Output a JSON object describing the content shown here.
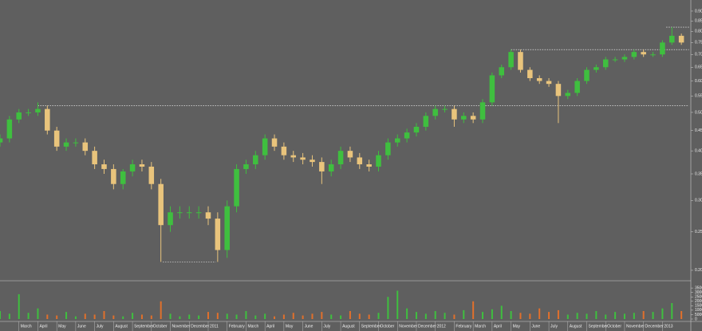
{
  "chart_data": {
    "type": "candlestick",
    "log": true,
    "up_color": "#3fbf3f",
    "down_color": "#e9c47c",
    "volume_up_color": "#3fbf3f",
    "volume_down_color": "#e0702c",
    "level_color": "#ffffff",
    "xlim": [
      0,
      36.5
    ],
    "xticks": [
      {
        "value": 1,
        "label": "March"
      },
      {
        "value": 2,
        "label": "April"
      },
      {
        "value": 3,
        "label": "May"
      },
      {
        "value": 4,
        "label": "June"
      },
      {
        "value": 5,
        "label": "July"
      },
      {
        "value": 6,
        "label": "August"
      },
      {
        "value": 7,
        "label": "September"
      },
      {
        "value": 8,
        "label": "October"
      },
      {
        "value": 9,
        "label": "November"
      },
      {
        "value": 10,
        "label": "December"
      },
      {
        "value": 11,
        "label": "2011"
      },
      {
        "value": 12,
        "label": "February"
      },
      {
        "value": 13,
        "label": "March"
      },
      {
        "value": 14,
        "label": "April"
      },
      {
        "value": 15,
        "label": "May"
      },
      {
        "value": 16,
        "label": "June"
      },
      {
        "value": 17,
        "label": "July"
      },
      {
        "value": 18,
        "label": "August"
      },
      {
        "value": 19,
        "label": "September"
      },
      {
        "value": 20,
        "label": "October"
      },
      {
        "value": 21,
        "label": "November"
      },
      {
        "value": 22,
        "label": "December"
      },
      {
        "value": 23,
        "label": "2012"
      },
      {
        "value": 24,
        "label": "February"
      },
      {
        "value": 25,
        "label": "March"
      },
      {
        "value": 26,
        "label": "April"
      },
      {
        "value": 27,
        "label": "May"
      },
      {
        "value": 28,
        "label": "June"
      },
      {
        "value": 29,
        "label": "July"
      },
      {
        "value": 30,
        "label": "August"
      },
      {
        "value": 31,
        "label": "September"
      },
      {
        "value": 32,
        "label": "October"
      },
      {
        "value": 33,
        "label": "November"
      },
      {
        "value": 34,
        "label": "December"
      },
      {
        "value": 35,
        "label": "2013"
      }
    ],
    "ylim": [
      0.19,
      0.96
    ],
    "yticks": [
      {
        "value": 0.9,
        "label": "0.90"
      },
      {
        "value": 0.85,
        "label": "0.85"
      },
      {
        "value": 0.8,
        "label": "0.80"
      },
      {
        "value": 0.75,
        "label": "0.75"
      },
      {
        "value": 0.7,
        "label": "0.70"
      },
      {
        "value": 0.65,
        "label": "0.65"
      },
      {
        "value": 0.6,
        "label": "0.60"
      },
      {
        "value": 0.55,
        "label": "0.55"
      },
      {
        "value": 0.5,
        "label": "0.50"
      },
      {
        "value": 0.45,
        "label": "0.45"
      },
      {
        "value": 0.4,
        "label": "0.40"
      },
      {
        "value": 0.35,
        "label": "0.35"
      },
      {
        "value": 0.3,
        "label": "0.30"
      },
      {
        "value": 0.25,
        "label": "0.25"
      },
      {
        "value": 0.2,
        "label": "0.20"
      }
    ],
    "volume_ylim": [
      0,
      36000
    ],
    "volume_yticks": [
      35000,
      30000,
      25000,
      20000,
      15000,
      10000,
      5000,
      0
    ],
    "levels": [
      {
        "value": 0.52,
        "from": 2,
        "to": 36.4
      },
      {
        "value": 0.72,
        "from": 27,
        "to": 36.4
      },
      {
        "value": 0.82,
        "from": 35.2,
        "to": 36.4
      },
      {
        "value": 0.21,
        "from": 8.6,
        "to": 11.4
      }
    ],
    "x": [
      0,
      0.5,
      1,
      1.5,
      2,
      2.5,
      3,
      3.5,
      4,
      4.5,
      5,
      5.5,
      6,
      6.5,
      7,
      7.5,
      8,
      8.5,
      9,
      9.5,
      10,
      10.5,
      11,
      11.5,
      12,
      12.5,
      13,
      13.5,
      14,
      14.5,
      15,
      15.5,
      16,
      16.5,
      17,
      17.5,
      18,
      18.5,
      19,
      19.5,
      20,
      20.5,
      21,
      21.5,
      22,
      22.5,
      23,
      23.5,
      24,
      24.5,
      25,
      25.5,
      26,
      26.5,
      27,
      27.5,
      28,
      28.5,
      29,
      29.5,
      30,
      30.5,
      31,
      31.5,
      32,
      32.5,
      33,
      33.5,
      34,
      34.5,
      35,
      35.5,
      36
    ],
    "open": [
      0.42,
      0.43,
      0.48,
      0.5,
      0.5,
      0.51,
      0.45,
      0.41,
      0.42,
      0.42,
      0.4,
      0.37,
      0.36,
      0.33,
      0.355,
      0.37,
      0.365,
      0.33,
      0.26,
      0.28,
      0.28,
      0.28,
      0.28,
      0.27,
      0.225,
      0.29,
      0.36,
      0.37,
      0.39,
      0.43,
      0.41,
      0.39,
      0.385,
      0.38,
      0.375,
      0.355,
      0.37,
      0.4,
      0.385,
      0.37,
      0.365,
      0.39,
      0.42,
      0.43,
      0.445,
      0.46,
      0.49,
      0.51,
      0.51,
      0.48,
      0.49,
      0.48,
      0.53,
      0.62,
      0.65,
      0.71,
      0.64,
      0.61,
      0.6,
      0.59,
      0.55,
      0.56,
      0.6,
      0.64,
      0.65,
      0.68,
      0.68,
      0.69,
      0.71,
      0.7,
      0.7,
      0.75,
      0.78
    ],
    "high": [
      0.44,
      0.49,
      0.51,
      0.51,
      0.53,
      0.52,
      0.46,
      0.43,
      0.43,
      0.43,
      0.41,
      0.38,
      0.37,
      0.36,
      0.38,
      0.38,
      0.375,
      0.34,
      0.29,
      0.29,
      0.29,
      0.29,
      0.29,
      0.28,
      0.3,
      0.37,
      0.38,
      0.4,
      0.44,
      0.44,
      0.42,
      0.4,
      0.395,
      0.39,
      0.385,
      0.38,
      0.41,
      0.41,
      0.395,
      0.38,
      0.4,
      0.43,
      0.44,
      0.455,
      0.47,
      0.5,
      0.52,
      0.52,
      0.52,
      0.5,
      0.5,
      0.54,
      0.63,
      0.66,
      0.72,
      0.72,
      0.65,
      0.62,
      0.61,
      0.6,
      0.57,
      0.61,
      0.65,
      0.66,
      0.69,
      0.69,
      0.7,
      0.72,
      0.72,
      0.71,
      0.76,
      0.82,
      0.79
    ],
    "low": [
      0.41,
      0.42,
      0.47,
      0.49,
      0.49,
      0.44,
      0.4,
      0.4,
      0.41,
      0.39,
      0.36,
      0.35,
      0.32,
      0.32,
      0.345,
      0.355,
      0.32,
      0.21,
      0.25,
      0.27,
      0.27,
      0.27,
      0.26,
      0.21,
      0.215,
      0.28,
      0.35,
      0.36,
      0.38,
      0.4,
      0.38,
      0.375,
      0.37,
      0.365,
      0.33,
      0.345,
      0.36,
      0.375,
      0.36,
      0.355,
      0.355,
      0.38,
      0.41,
      0.42,
      0.435,
      0.45,
      0.48,
      0.5,
      0.46,
      0.47,
      0.47,
      0.47,
      0.52,
      0.61,
      0.64,
      0.63,
      0.6,
      0.59,
      0.58,
      0.47,
      0.54,
      0.55,
      0.59,
      0.63,
      0.64,
      0.67,
      0.67,
      0.68,
      0.69,
      0.69,
      0.69,
      0.74,
      0.74
    ],
    "close": [
      0.43,
      0.48,
      0.5,
      0.5,
      0.51,
      0.45,
      0.41,
      0.42,
      0.42,
      0.4,
      0.37,
      0.36,
      0.33,
      0.355,
      0.37,
      0.365,
      0.33,
      0.26,
      0.28,
      0.28,
      0.28,
      0.28,
      0.27,
      0.225,
      0.29,
      0.36,
      0.37,
      0.39,
      0.43,
      0.41,
      0.39,
      0.385,
      0.38,
      0.375,
      0.355,
      0.37,
      0.4,
      0.385,
      0.37,
      0.365,
      0.39,
      0.42,
      0.43,
      0.445,
      0.46,
      0.49,
      0.51,
      0.51,
      0.48,
      0.49,
      0.48,
      0.53,
      0.62,
      0.65,
      0.71,
      0.64,
      0.61,
      0.6,
      0.59,
      0.55,
      0.56,
      0.6,
      0.64,
      0.65,
      0.68,
      0.68,
      0.69,
      0.71,
      0.7,
      0.7,
      0.75,
      0.78,
      0.75
    ],
    "volume": [
      9000,
      6000,
      28000,
      7000,
      12000,
      5000,
      4000,
      8000,
      3000,
      6000,
      5000,
      9000,
      4000,
      3000,
      7000,
      5000,
      4000,
      20000,
      6000,
      3000,
      5000,
      4000,
      8000,
      7000,
      6000,
      5000,
      9000,
      4000,
      6000,
      3000,
      5000,
      7000,
      4000,
      6000,
      8000,
      5000,
      4000,
      9000,
      6000,
      5000,
      7000,
      25000,
      32000,
      12000,
      8000,
      6000,
      9000,
      7000,
      5000,
      10000,
      20000,
      8000,
      11000,
      15000,
      9000,
      7000,
      6000,
      12000,
      8000,
      10000,
      5000,
      7000,
      6000,
      9000,
      5000,
      8000,
      6000,
      7000,
      9000,
      8000,
      12000,
      18000,
      9000
    ]
  }
}
